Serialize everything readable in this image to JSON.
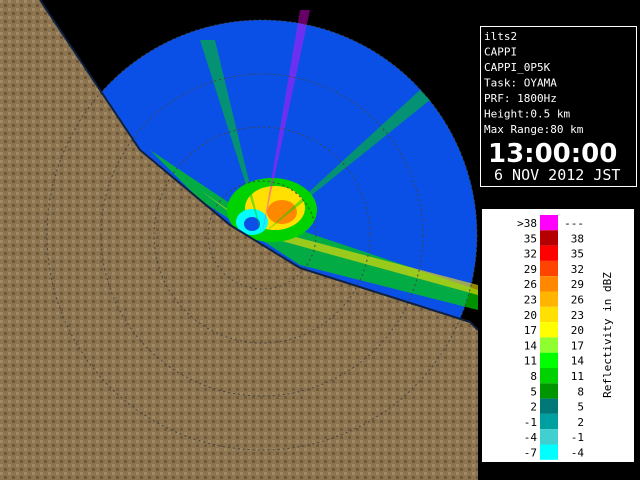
{
  "info": {
    "lines": [
      "ilts2",
      "CAPPI",
      "CAPPI_0P5K",
      "Task: OYAMA",
      "PRF: 1800Hz",
      "Height:0.5 km",
      "Max Range:80 km"
    ],
    "time": "13:00:00",
    "date": "6 NOV 2012 JST"
  },
  "legend": {
    "title": "Reflectivity in dBZ",
    "rows": [
      {
        "low": ">38",
        "high": "---",
        "color": "#ff00ff"
      },
      {
        "low": "35",
        "high": "38",
        "color": "#b40000"
      },
      {
        "low": "32",
        "high": "35",
        "color": "#ff0000"
      },
      {
        "low": "29",
        "high": "32",
        "color": "#ff4400"
      },
      {
        "low": "26",
        "high": "29",
        "color": "#ff8800"
      },
      {
        "low": "23",
        "high": "26",
        "color": "#ffb400"
      },
      {
        "low": "20",
        "high": "23",
        "color": "#ffe000"
      },
      {
        "low": "17",
        "high": "20",
        "color": "#ffff00"
      },
      {
        "low": "14",
        "high": "17",
        "color": "#90ff30"
      },
      {
        "low": "11",
        "high": "14",
        "color": "#00ff00"
      },
      {
        "low": "8",
        "high": "11",
        "color": "#00d200"
      },
      {
        "low": "5",
        "high": "8",
        "color": "#009600"
      },
      {
        "low": "2",
        "high": "5",
        "color": "#007878"
      },
      {
        "low": "-1",
        "high": "2",
        "color": "#00a0a0"
      },
      {
        "low": "-4",
        "high": "-1",
        "color": "#40d0d0"
      },
      {
        "low": "-7",
        "high": "-4",
        "color": "#00ffff"
      }
    ]
  }
}
